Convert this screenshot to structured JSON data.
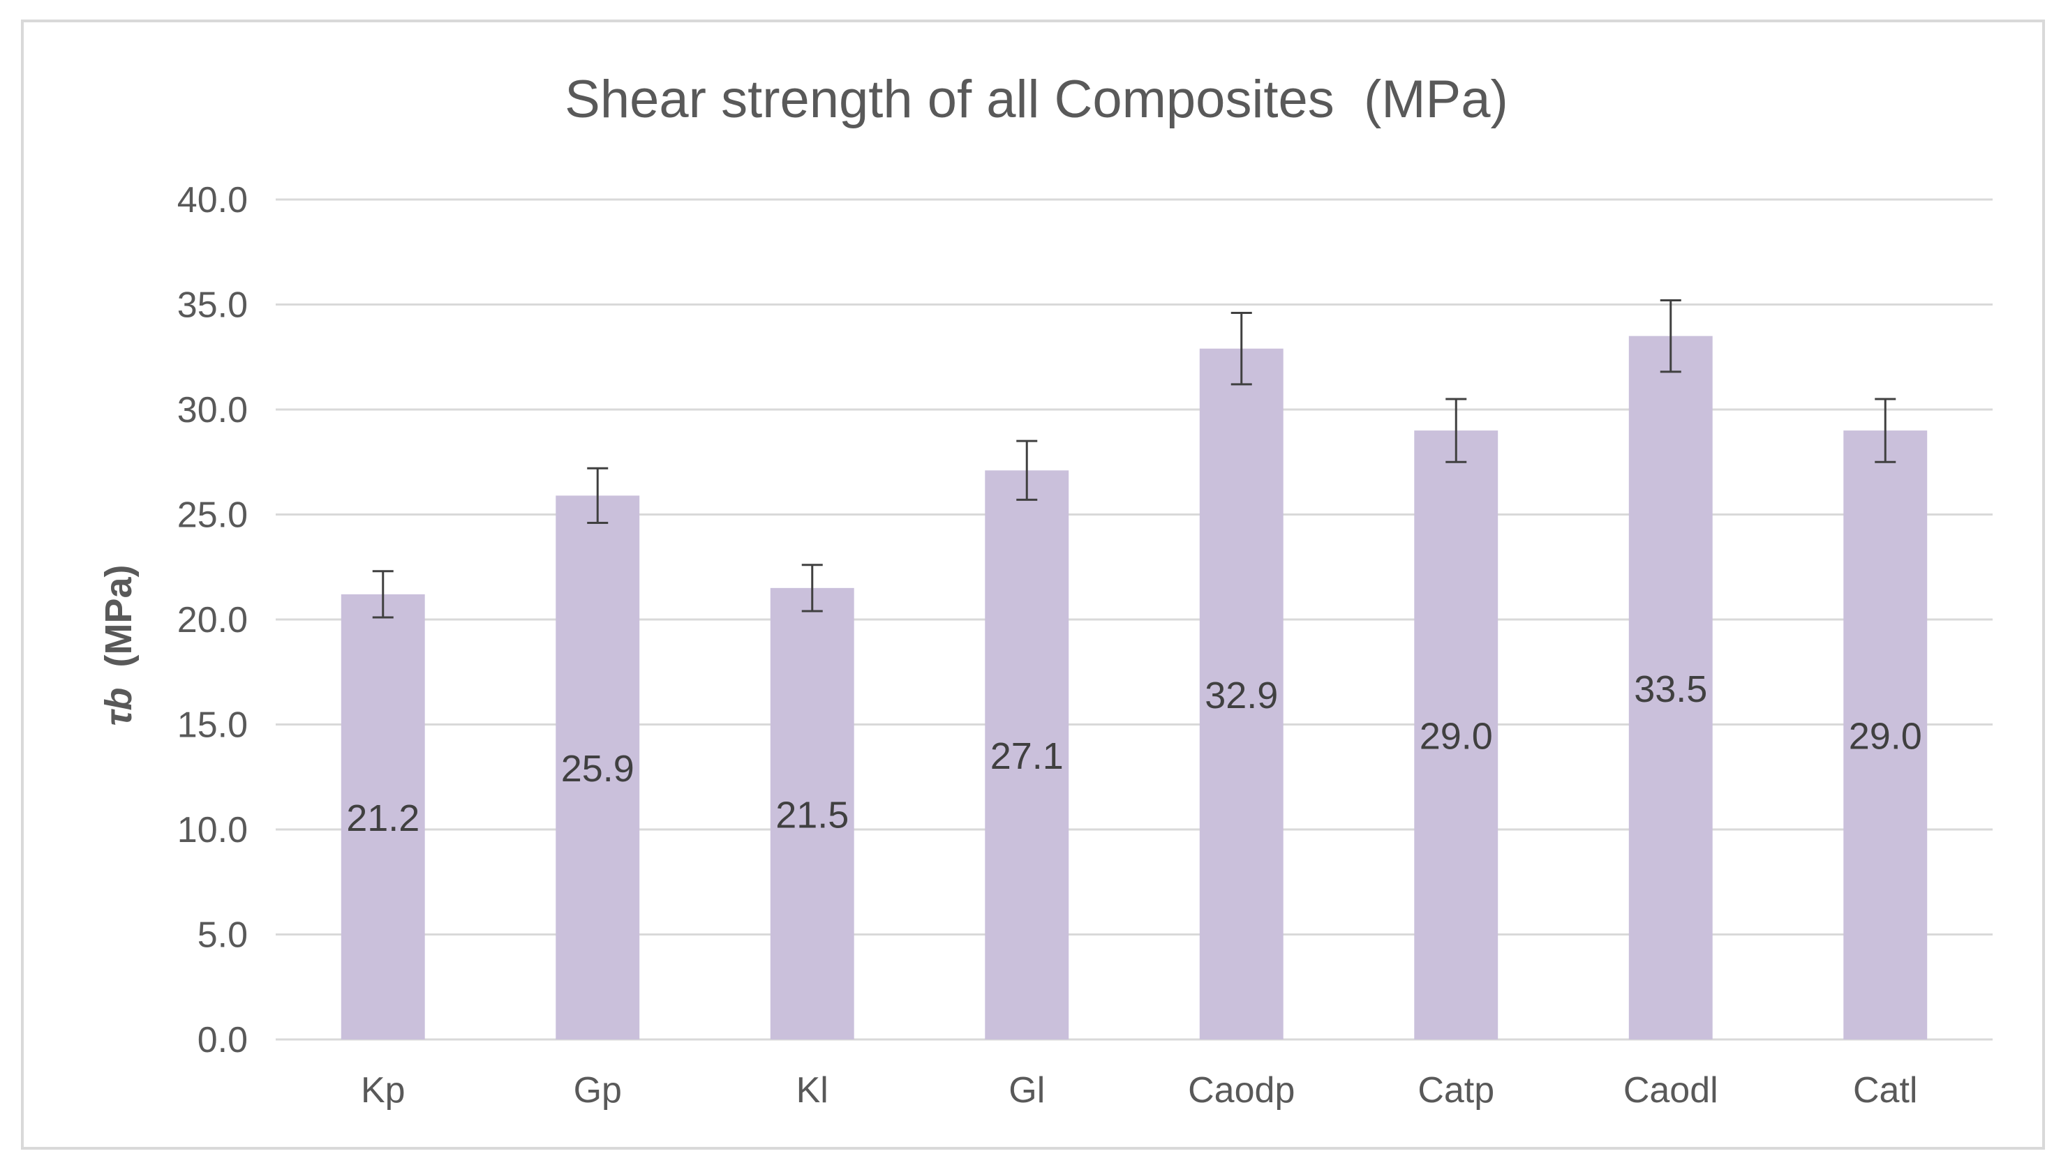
{
  "chart_data": {
    "type": "bar",
    "title": "Shear strength of all Composites  (MPa)",
    "xlabel": "",
    "ylabel": "τb (MPa)",
    "ylabel_symbol": "τb",
    "ylabel_unit": "(MPa)",
    "ylim": [
      0,
      40
    ],
    "yticks": [
      0,
      5,
      10,
      15,
      20,
      25,
      30,
      35,
      40
    ],
    "ytick_labels": [
      "0.0",
      "5.0",
      "10.0",
      "15.0",
      "20.0",
      "25.0",
      "30.0",
      "35.0",
      "40.0"
    ],
    "grid": true,
    "legend": "none",
    "bar_color": "#cac0db",
    "categories": [
      "Kp",
      "Gp",
      "Kl",
      "Gl",
      "Caodp",
      "Catp",
      "Caodl",
      "Catl"
    ],
    "values": [
      21.2,
      25.9,
      21.5,
      27.1,
      32.9,
      29.0,
      33.5,
      29.0
    ],
    "value_labels": [
      "21.2",
      "25.9",
      "21.5",
      "27.1",
      "32.9",
      "29.0",
      "33.5",
      "29.0"
    ],
    "error": [
      1.1,
      1.3,
      1.1,
      1.4,
      1.7,
      1.5,
      1.7,
      1.5
    ]
  }
}
